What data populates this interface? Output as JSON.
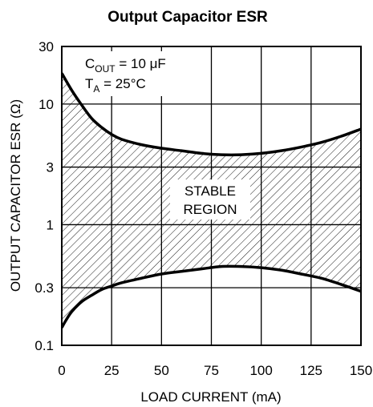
{
  "chart_data": {
    "type": "area",
    "title": "Output Capacitor ESR",
    "xlabel": "LOAD CURRENT (mA)",
    "ylabel": "OUTPUT CAPACITOR ESR (Ω)",
    "xlim": [
      0,
      150
    ],
    "ylim": [
      0.1,
      30
    ],
    "yscale": "log",
    "grid": true,
    "x_ticks": [
      "0",
      "25",
      "50",
      "75",
      "100",
      "125",
      "150"
    ],
    "x_tick_values": [
      0,
      25,
      50,
      75,
      100,
      125,
      150
    ],
    "y_ticks": [
      "0.1",
      "0.3",
      "1",
      "3",
      "10",
      "30"
    ],
    "y_tick_values": [
      0.1,
      0.3,
      1,
      3,
      10,
      30
    ],
    "annotations": {
      "cout_main": "C",
      "cout_sub": "OUT",
      "cout_value": " = 10 μF",
      "ta_main": "T",
      "ta_sub": "A",
      "ta_value": " = 25°C"
    },
    "region_label": [
      "STABLE",
      "REGION"
    ],
    "series": [
      {
        "x": [
          0,
          5,
          10,
          15,
          20,
          25,
          30,
          40,
          50,
          60,
          70,
          80,
          90,
          100,
          110,
          120,
          130,
          140,
          150
        ],
        "values": [
          18,
          13,
          9.8,
          7.6,
          6.4,
          5.6,
          5.1,
          4.6,
          4.3,
          4.1,
          3.9,
          3.8,
          3.8,
          3.9,
          4.1,
          4.4,
          4.8,
          5.4,
          6.2
        ]
      },
      {
        "x": [
          0,
          2,
          5,
          10,
          15,
          20,
          25,
          30,
          40,
          50,
          60,
          70,
          80,
          90,
          100,
          110,
          120,
          130,
          140,
          150
        ],
        "values": [
          0.14,
          0.16,
          0.19,
          0.23,
          0.26,
          0.29,
          0.31,
          0.33,
          0.36,
          0.39,
          0.41,
          0.43,
          0.45,
          0.45,
          0.44,
          0.42,
          0.39,
          0.36,
          0.32,
          0.28
        ]
      }
    ]
  }
}
